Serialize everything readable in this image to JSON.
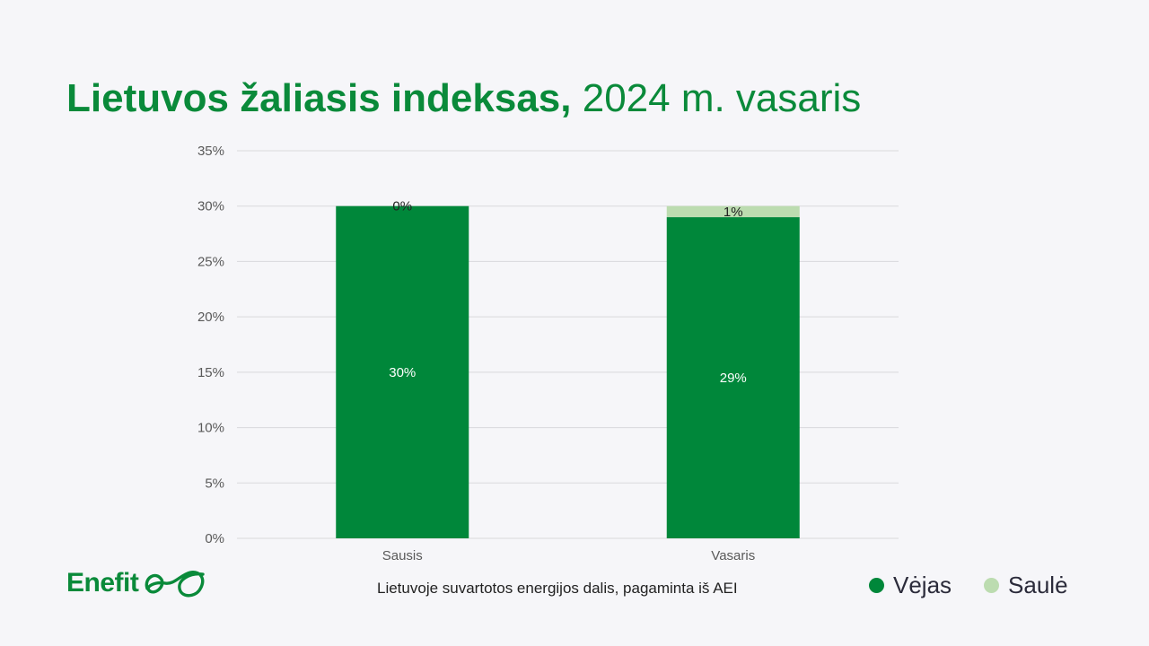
{
  "title": {
    "bold": "Lietuvos žaliasis indeksas,",
    "normal": "2024 m. vasaris"
  },
  "caption": "Lietuvoje suvartotos energijos dalis, pagaminta iš AEI",
  "logo": {
    "text": "Enefit",
    "icon": "enefit-swirl-logo"
  },
  "colors": {
    "vejas": "#00873a",
    "saule": "#bcdcb0",
    "title": "#0a8a3a"
  },
  "chart_data": {
    "type": "bar",
    "stacked": true,
    "categories": [
      "Sausis",
      "Vasaris"
    ],
    "series": [
      {
        "name": "Vėjas",
        "values": [
          30,
          29
        ],
        "labels": [
          "30%",
          "29%"
        ],
        "color": "#00873a"
      },
      {
        "name": "Saulė",
        "values": [
          0,
          1
        ],
        "labels": [
          "0%",
          "1%"
        ],
        "color": "#bcdcb0"
      }
    ],
    "y_ticks": [
      "0%",
      "5%",
      "10%",
      "15%",
      "20%",
      "25%",
      "30%",
      "35%"
    ],
    "ylim": [
      0,
      35
    ],
    "grid": true,
    "legend_position": "bottom-right"
  }
}
